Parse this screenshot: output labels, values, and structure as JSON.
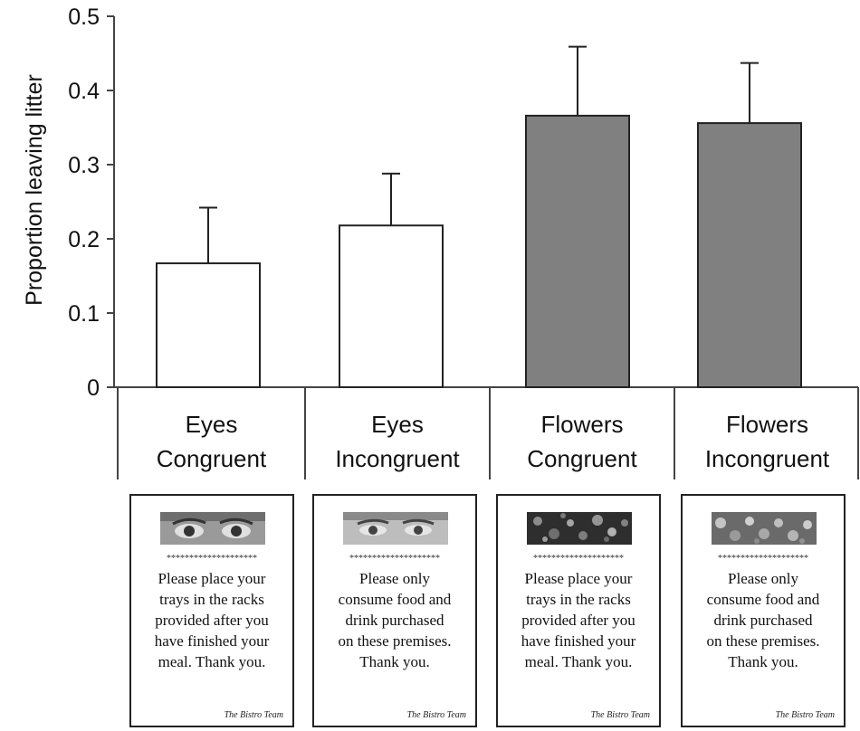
{
  "chart_data": {
    "type": "bar",
    "ylabel": "Proportion leaving litter",
    "ylim": [
      0,
      0.5
    ],
    "yticks": [
      "0",
      "0.1",
      "0.2",
      "0.3",
      "0.4",
      "0.5"
    ],
    "categories": [
      {
        "line1": "Eyes",
        "line2": "Congruent"
      },
      {
        "line1": "Eyes",
        "line2": "Incongruent"
      },
      {
        "line1": "Flowers",
        "line2": "Congruent"
      },
      {
        "line1": "Flowers",
        "line2": "Incongruent"
      }
    ],
    "values": [
      0.167,
      0.218,
      0.366,
      0.356
    ],
    "error_upper": [
      0.242,
      0.288,
      0.459,
      0.437
    ],
    "bar_colors": [
      "#ffffff",
      "#ffffff",
      "#808080",
      "#808080"
    ],
    "grid": false
  },
  "signs": [
    {
      "image": "eyes-photo",
      "stars": "********************",
      "text": "Please place your\ntrays in the racks\nprovided after you\nhave finished your\nmeal. Thank you.",
      "signature": "The Bistro Team"
    },
    {
      "image": "eyes-photo",
      "stars": "********************",
      "text": "Please only\nconsume food and\ndrink purchased\non these premises.\nThank you.",
      "signature": "The Bistro Team"
    },
    {
      "image": "flowers-photo",
      "stars": "********************",
      "text": "Please place your\ntrays in the racks\nprovided after you\nhave finished your\nmeal. Thank you.",
      "signature": "The Bistro Team"
    },
    {
      "image": "flowers-photo",
      "stars": "********************",
      "text": "Please only\nconsume food and\ndrink purchased\non these premises.\nThank you.",
      "signature": "The Bistro Team"
    }
  ]
}
